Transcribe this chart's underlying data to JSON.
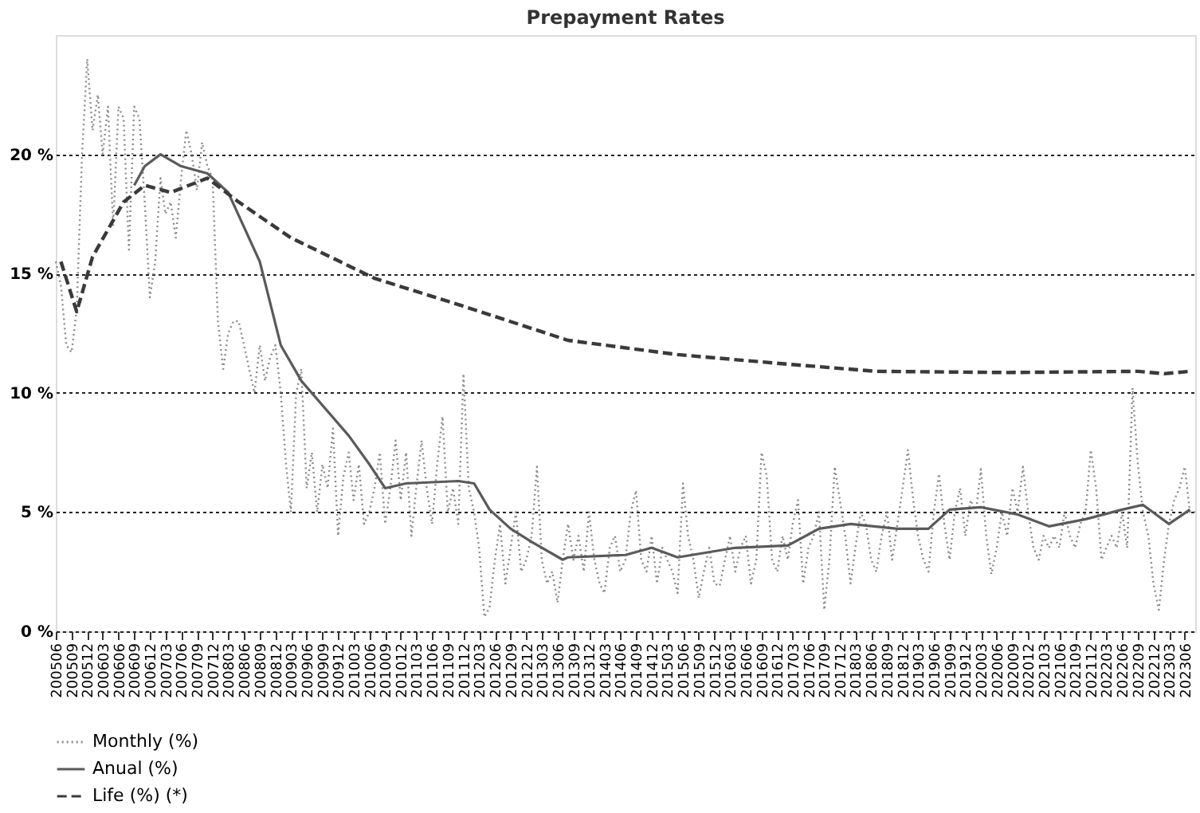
{
  "chart_data": {
    "type": "line",
    "title": "Prepayment Rates",
    "x": [
      "2005-06",
      "2005-07",
      "2005-08",
      "2005-09",
      "2005-10",
      "2005-11",
      "2005-12",
      "2006-01",
      "2006-02",
      "2006-03",
      "2006-04",
      "2006-05",
      "2006-06",
      "2006-07",
      "2006-08",
      "2006-09",
      "2006-10",
      "2006-11",
      "2006-12",
      "2007-01",
      "2007-02",
      "2007-03",
      "2007-04",
      "2007-05",
      "2007-06",
      "2007-07",
      "2007-08",
      "2007-09",
      "2007-10",
      "2007-11",
      "2007-12",
      "2008-01",
      "2008-02",
      "2008-03",
      "2008-04",
      "2008-05",
      "2008-06",
      "2008-07",
      "2008-08",
      "2008-09",
      "2008-10",
      "2008-11",
      "2008-12",
      "2009-01",
      "2009-02",
      "2009-03",
      "2009-04",
      "2009-05",
      "2009-06",
      "2009-07",
      "2009-08",
      "2009-09",
      "2009-10",
      "2009-11",
      "2009-12",
      "2010-01",
      "2010-02",
      "2010-03",
      "2010-04",
      "2010-05",
      "2010-06",
      "2010-07",
      "2010-08",
      "2010-09",
      "2010-10",
      "2010-11",
      "2010-12",
      "2011-01",
      "2011-02",
      "2011-03",
      "2011-04",
      "2011-05",
      "2011-06",
      "2011-07",
      "2011-08",
      "2011-09",
      "2011-10",
      "2011-11",
      "2011-12",
      "2012-01",
      "2012-02",
      "2012-03",
      "2012-04",
      "2012-05",
      "2012-06",
      "2012-07",
      "2012-08",
      "2012-09",
      "2012-10",
      "2012-11",
      "2012-12",
      "2013-01",
      "2013-02",
      "2013-03",
      "2013-04",
      "2013-05",
      "2013-06",
      "2013-07",
      "2013-08",
      "2013-09",
      "2013-10",
      "2013-11",
      "2013-12",
      "2014-01",
      "2014-02",
      "2014-03",
      "2014-04",
      "2014-05",
      "2014-06",
      "2014-07",
      "2014-08",
      "2014-09",
      "2014-10",
      "2014-11",
      "2014-12",
      "2015-01",
      "2015-02",
      "2015-03",
      "2015-04",
      "2015-05",
      "2015-06",
      "2015-07",
      "2015-08",
      "2015-09",
      "2015-10",
      "2015-11",
      "2015-12",
      "2016-01",
      "2016-02",
      "2016-03",
      "2016-04",
      "2016-05",
      "2016-06",
      "2016-07",
      "2016-08",
      "2016-09",
      "2016-10",
      "2016-11",
      "2016-12",
      "2017-01",
      "2017-02",
      "2017-03",
      "2017-04",
      "2017-05",
      "2017-06",
      "2017-07",
      "2017-08",
      "2017-09",
      "2017-10",
      "2017-11",
      "2017-12",
      "2018-01",
      "2018-02",
      "2018-03",
      "2018-04",
      "2018-05",
      "2018-06",
      "2018-07",
      "2018-08",
      "2018-09",
      "2018-10",
      "2018-11",
      "2018-12",
      "2019-01",
      "2019-02",
      "2019-03",
      "2019-04",
      "2019-05",
      "2019-06",
      "2019-07",
      "2019-08",
      "2019-09",
      "2019-10",
      "2019-11",
      "2019-12",
      "2020-01",
      "2020-02",
      "2020-03",
      "2020-04",
      "2020-05",
      "2020-06",
      "2020-07",
      "2020-08",
      "2020-09",
      "2020-10",
      "2020-11",
      "2020-12",
      "2021-01",
      "2021-02",
      "2021-03",
      "2021-04",
      "2021-05",
      "2021-06",
      "2021-07",
      "2021-08",
      "2021-09",
      "2021-10",
      "2021-11",
      "2021-12",
      "2022-01",
      "2022-02",
      "2022-03",
      "2022-04",
      "2022-05",
      "2022-06",
      "2022-07",
      "2022-08",
      "2022-09",
      "2022-10",
      "2022-11",
      "2022-12",
      "2023-01",
      "2023-02",
      "2023-03",
      "2023-04",
      "2023-05",
      "2023-06",
      "2023-07",
      "2023-08"
    ],
    "series": [
      {
        "name": "Monthly (%)",
        "color": "#8a8a8a",
        "line_style": "dotted",
        "values": [
          15.5,
          14.5,
          12,
          11.7,
          13.5,
          20,
          24,
          21,
          22.5,
          20,
          22,
          17,
          22,
          21.5,
          16,
          22,
          21.5,
          18,
          14,
          15.5,
          19,
          17.5,
          18,
          16.5,
          19,
          21,
          20,
          18.5,
          20.5,
          19.5,
          19,
          13,
          11,
          12.5,
          13,
          13,
          12,
          11,
          10,
          12,
          10.5,
          11.5,
          12,
          10,
          7,
          5,
          10,
          11,
          6,
          7.5,
          5,
          7,
          6,
          8.5,
          4,
          6.5,
          7.5,
          5.5,
          7,
          4.5,
          5,
          6,
          7.5,
          4.5,
          6,
          8,
          5.5,
          7.5,
          4,
          6,
          8,
          6,
          4.5,
          7,
          9,
          5,
          6,
          4.5,
          10.8,
          6,
          5,
          3.5,
          0.6,
          1,
          3,
          4.5,
          2,
          3.5,
          5,
          2.5,
          3,
          4,
          6.9,
          3,
          2,
          2.5,
          1.2,
          3,
          4.5,
          3,
          4,
          2.5,
          5,
          3,
          2,
          1.6,
          3.5,
          4,
          2.5,
          3,
          5,
          5.9,
          3,
          2.5,
          4,
          2,
          3.5,
          3,
          2.5,
          1.6,
          6.2,
          4,
          3,
          1.4,
          2.5,
          3.5,
          2,
          1.9,
          3,
          4,
          2.5,
          3.5,
          4,
          2,
          3,
          7.5,
          6.5,
          3,
          2.5,
          4,
          3,
          4.5,
          5.5,
          2,
          3.5,
          4,
          5,
          0.9,
          3,
          6.9,
          5.5,
          4,
          2,
          3.5,
          5,
          4.5,
          3,
          2.5,
          4,
          5,
          3,
          4.5,
          6,
          7.6,
          5.5,
          4,
          3,
          2.5,
          5,
          6.6,
          4.5,
          3,
          5,
          6,
          4,
          5.5,
          5,
          6.8,
          4,
          2.4,
          3.5,
          5,
          4,
          6,
          5,
          6.9,
          5,
          3.5,
          3,
          4,
          3.5,
          4,
          3.5,
          5,
          4,
          3.5,
          4.5,
          5,
          7.6,
          6,
          3,
          3.5,
          4,
          3.5,
          5,
          3.5,
          10.2,
          7,
          5,
          4,
          2,
          0.9,
          3,
          4.5,
          5.5,
          6,
          6.9,
          5,
          5
        ]
      },
      {
        "name": "Anual (%)",
        "color": "#5a5a5a",
        "line_style": "solid",
        "x": [
          "2006-09",
          "2006-11",
          "2007-02",
          "2007-06",
          "2007-11",
          "2008-03",
          "2008-09",
          "2009-01",
          "2009-05",
          "2010-02",
          "2010-06",
          "2010-09",
          "2011-01",
          "2011-11",
          "2012-02",
          "2012-05",
          "2012-09",
          "2013-01",
          "2013-07",
          "2013-08",
          "2014-07",
          "2014-12",
          "2015-05",
          "2016-04",
          "2017-02",
          "2017-08",
          "2018-02",
          "2018-11",
          "2019-05",
          "2019-09",
          "2020-03",
          "2020-10",
          "2021-04",
          "2021-11",
          "2022-06",
          "2022-10",
          "2023-03",
          "2023-07"
        ],
        "values": [
          18.7,
          19.5,
          20,
          19.5,
          19.2,
          18.4,
          15.5,
          12,
          10.5,
          8.2,
          7,
          6,
          6.2,
          6.3,
          6.2,
          5.1,
          4.3,
          3.75,
          3,
          3.1,
          3.2,
          3.5,
          3.1,
          3.5,
          3.6,
          4.3,
          4.5,
          4.3,
          4.3,
          5.1,
          5.2,
          4.9,
          4.4,
          4.7,
          5.1,
          5.3,
          4.5,
          5.1
        ]
      },
      {
        "name": "Life (%) (*)",
        "color": "#3a3a3a",
        "line_style": "dashed",
        "x": [
          "2005-07",
          "2005-10",
          "2006-01",
          "2006-07",
          "2006-11",
          "2007-04",
          "2007-11",
          "2008-05",
          "2009-03",
          "2010-07",
          "2011-11",
          "2013-08",
          "2015-05",
          "2017-02",
          "2018-07",
          "2020-08",
          "2022-09",
          "2023-02",
          "2023-07"
        ],
        "values": [
          15.5,
          13.4,
          15.7,
          18,
          18.7,
          18.4,
          19,
          18,
          16.5,
          14.8,
          13.7,
          12.2,
          11.6,
          11.2,
          10.9,
          10.85,
          10.9,
          10.8,
          10.9
        ]
      }
    ],
    "ylim": [
      0,
      25
    ],
    "yticks": [
      {
        "value": 0,
        "label": "0 %"
      },
      {
        "value": 5,
        "label": "5 %"
      },
      {
        "value": 10,
        "label": "10 %"
      },
      {
        "value": 15,
        "label": "15 %"
      },
      {
        "value": 20,
        "label": "20 %"
      }
    ],
    "xlim": [
      "2005-06",
      "2023-08"
    ],
    "xticks": [
      {
        "value": "2005-06",
        "label": "200506"
      },
      {
        "value": "2005-09",
        "label": "200509"
      },
      {
        "value": "2005-12",
        "label": "200512"
      },
      {
        "value": "2006-03",
        "label": "200603"
      },
      {
        "value": "2006-06",
        "label": "200606"
      },
      {
        "value": "2006-09",
        "label": "200609"
      },
      {
        "value": "2006-12",
        "label": "200612"
      },
      {
        "value": "2007-03",
        "label": "200703"
      },
      {
        "value": "2007-06",
        "label": "200706"
      },
      {
        "value": "2007-09",
        "label": "200709"
      },
      {
        "value": "2007-12",
        "label": "200712"
      },
      {
        "value": "2008-03",
        "label": "200803"
      },
      {
        "value": "2008-06",
        "label": "200806"
      },
      {
        "value": "2008-09",
        "label": "200809"
      },
      {
        "value": "2008-12",
        "label": "200812"
      },
      {
        "value": "2009-03",
        "label": "200903"
      },
      {
        "value": "2009-06",
        "label": "200906"
      },
      {
        "value": "2009-09",
        "label": "200909"
      },
      {
        "value": "2009-12",
        "label": "200912"
      },
      {
        "value": "2010-03",
        "label": "201003"
      },
      {
        "value": "2010-06",
        "label": "201006"
      },
      {
        "value": "2010-09",
        "label": "201009"
      },
      {
        "value": "2010-12",
        "label": "201012"
      },
      {
        "value": "2011-03",
        "label": "201103"
      },
      {
        "value": "2011-06",
        "label": "201106"
      },
      {
        "value": "2011-09",
        "label": "201109"
      },
      {
        "value": "2011-12",
        "label": "201112"
      },
      {
        "value": "2012-03",
        "label": "201203"
      },
      {
        "value": "2012-06",
        "label": "201206"
      },
      {
        "value": "2012-09",
        "label": "201209"
      },
      {
        "value": "2012-12",
        "label": "201212"
      },
      {
        "value": "2013-03",
        "label": "201303"
      },
      {
        "value": "2013-06",
        "label": "201306"
      },
      {
        "value": "2013-09",
        "label": "201309"
      },
      {
        "value": "2013-12",
        "label": "201312"
      },
      {
        "value": "2014-03",
        "label": "201403"
      },
      {
        "value": "2014-06",
        "label": "201406"
      },
      {
        "value": "2014-09",
        "label": "201409"
      },
      {
        "value": "2014-12",
        "label": "201412"
      },
      {
        "value": "2015-03",
        "label": "201503"
      },
      {
        "value": "2015-06",
        "label": "201506"
      },
      {
        "value": "2015-09",
        "label": "201509"
      },
      {
        "value": "2015-12",
        "label": "201512"
      },
      {
        "value": "2016-03",
        "label": "201603"
      },
      {
        "value": "2016-06",
        "label": "201606"
      },
      {
        "value": "2016-09",
        "label": "201609"
      },
      {
        "value": "2016-12",
        "label": "201612"
      },
      {
        "value": "2017-03",
        "label": "201703"
      },
      {
        "value": "2017-06",
        "label": "201706"
      },
      {
        "value": "2017-09",
        "label": "201709"
      },
      {
        "value": "2017-12",
        "label": "201712"
      },
      {
        "value": "2018-03",
        "label": "201803"
      },
      {
        "value": "2018-06",
        "label": "201806"
      },
      {
        "value": "2018-09",
        "label": "201809"
      },
      {
        "value": "2018-12",
        "label": "201812"
      },
      {
        "value": "2019-03",
        "label": "201903"
      },
      {
        "value": "2019-06",
        "label": "201906"
      },
      {
        "value": "2019-09",
        "label": "201909"
      },
      {
        "value": "2019-12",
        "label": "201912"
      },
      {
        "value": "2020-03",
        "label": "202003"
      },
      {
        "value": "2020-06",
        "label": "202006"
      },
      {
        "value": "2020-09",
        "label": "202009"
      },
      {
        "value": "2020-12",
        "label": "202012"
      },
      {
        "value": "2021-03",
        "label": "202103"
      },
      {
        "value": "2021-06",
        "label": "202106"
      },
      {
        "value": "2021-09",
        "label": "202109"
      },
      {
        "value": "2021-12",
        "label": "202112"
      },
      {
        "value": "2022-03",
        "label": "202203"
      },
      {
        "value": "2022-06",
        "label": "202206"
      },
      {
        "value": "2022-09",
        "label": "202209"
      },
      {
        "value": "2022-12",
        "label": "202212"
      },
      {
        "value": "2023-03",
        "label": "202303"
      },
      {
        "value": "2023-06",
        "label": "202306"
      }
    ],
    "grid": "y",
    "legend": "bottom",
    "marker": "none"
  }
}
